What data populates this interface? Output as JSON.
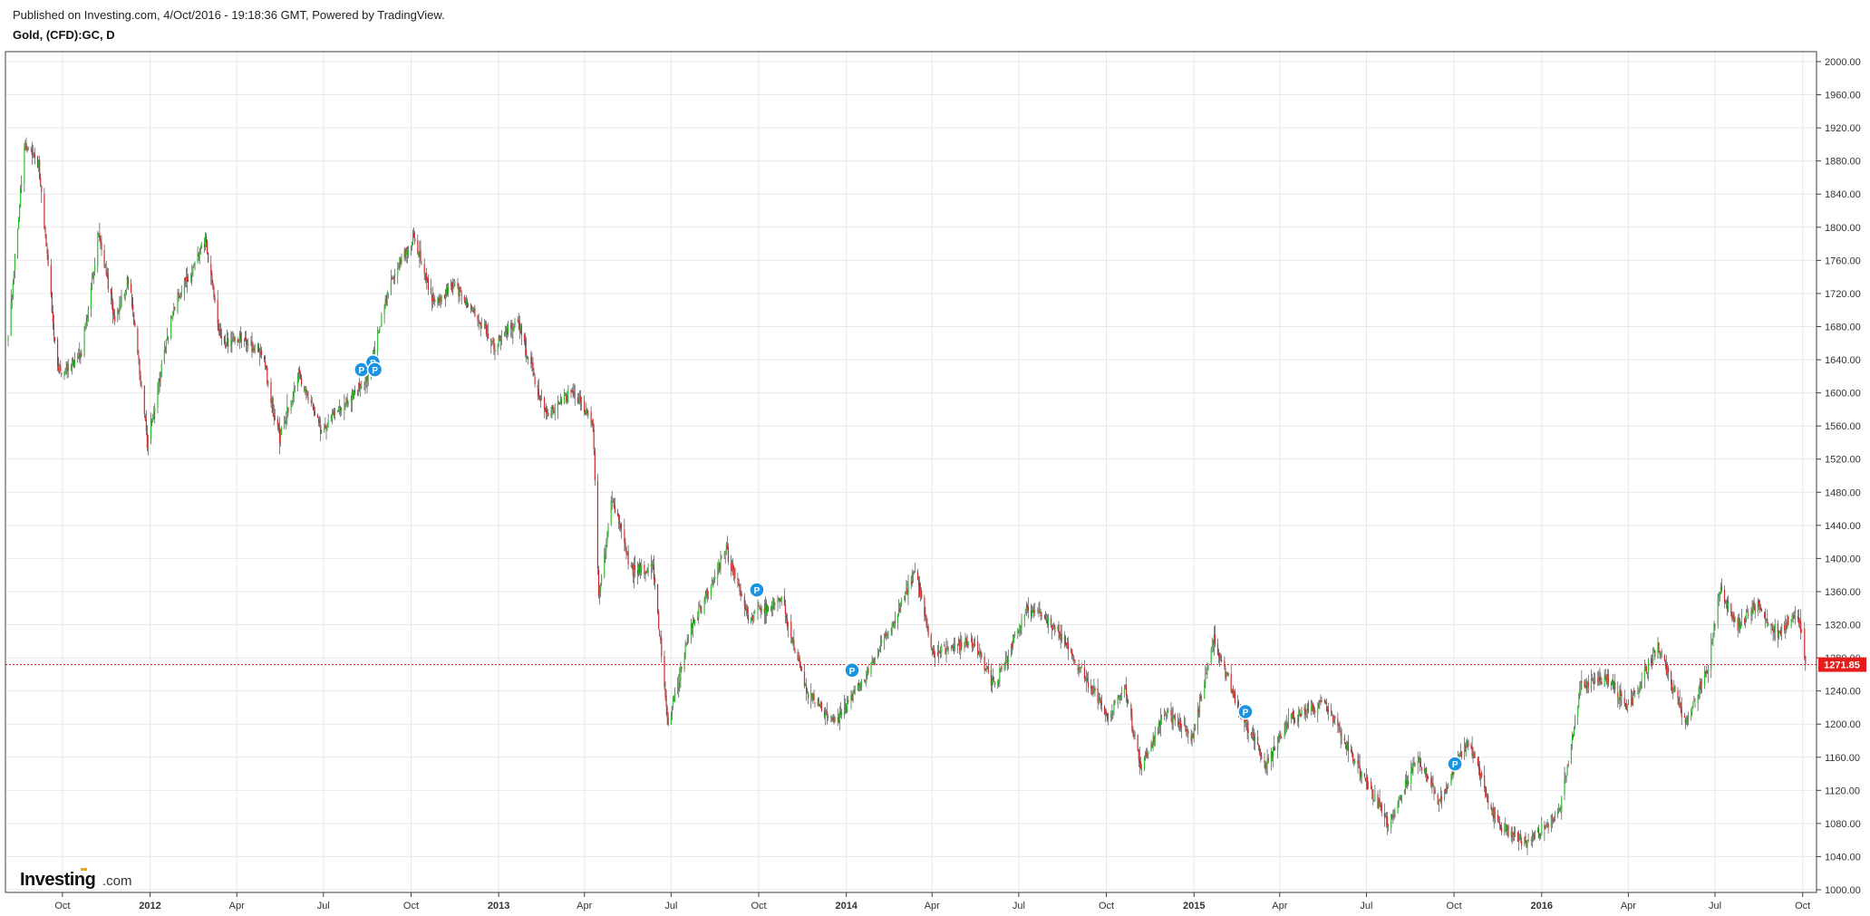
{
  "header": {
    "published": "Published on Investing.com, 4/Oct/2016 - 19:18:36 GMT, Powered by TradingView.",
    "symbol": "Gold, (CFD):GC, D"
  },
  "logo": {
    "brand": "Investing",
    "suffix": ".com"
  },
  "colors": {
    "up": "#2cbf2c",
    "down": "#d2272c",
    "grid": "#e9e9e9",
    "last_price": "#e41c1c",
    "marker": "#1a93e0"
  },
  "chart_data": {
    "type": "candlestick",
    "title": "Gold, (CFD):GC, D",
    "x_ticks": [
      {
        "label": "Oct",
        "date": "2011-10-01"
      },
      {
        "label": "2012",
        "date": "2012-01-01",
        "bold": true
      },
      {
        "label": "Apr",
        "date": "2012-04-01"
      },
      {
        "label": "Jul",
        "date": "2012-07-01"
      },
      {
        "label": "Oct",
        "date": "2012-10-01"
      },
      {
        "label": "2013",
        "date": "2013-01-01",
        "bold": true
      },
      {
        "label": "Apr",
        "date": "2013-04-01"
      },
      {
        "label": "Jul",
        "date": "2013-07-01"
      },
      {
        "label": "Oct",
        "date": "2013-10-01"
      },
      {
        "label": "2014",
        "date": "2014-01-01",
        "bold": true
      },
      {
        "label": "Apr",
        "date": "2014-04-01"
      },
      {
        "label": "Jul",
        "date": "2014-07-01"
      },
      {
        "label": "Oct",
        "date": "2014-10-01"
      },
      {
        "label": "2015",
        "date": "2015-01-01",
        "bold": true
      },
      {
        "label": "Apr",
        "date": "2015-04-01"
      },
      {
        "label": "Jul",
        "date": "2015-07-01"
      },
      {
        "label": "Oct",
        "date": "2015-10-01"
      },
      {
        "label": "2016",
        "date": "2016-01-01",
        "bold": true
      },
      {
        "label": "Apr",
        "date": "2016-04-01"
      },
      {
        "label": "Jul",
        "date": "2016-07-01"
      },
      {
        "label": "Oct",
        "date": "2016-10-01"
      }
    ],
    "y_ticks": [
      "1000.00",
      "1040.00",
      "1080.00",
      "1120.00",
      "1160.00",
      "1200.00",
      "1240.00",
      "1280.00",
      "1320.00",
      "1360.00",
      "1400.00",
      "1440.00",
      "1480.00",
      "1520.00",
      "1560.00",
      "1600.00",
      "1640.00",
      "1680.00",
      "1720.00",
      "1760.00",
      "1800.00",
      "1840.00",
      "1880.00",
      "1920.00",
      "1960.00",
      "2000.00"
    ],
    "ylim": [
      1000,
      2000
    ],
    "x_range": [
      "2011-08-05",
      "2016-10-07"
    ],
    "grid": true,
    "last_price": {
      "value": 1271.85,
      "label": "1271.85"
    },
    "markers": [
      {
        "date": "2012-08-10",
        "price": 1628,
        "label": "P"
      },
      {
        "date": "2012-08-22",
        "price": 1637,
        "label": "P"
      },
      {
        "date": "2012-08-24",
        "price": 1628,
        "label": "P"
      },
      {
        "date": "2013-09-29",
        "price": 1362,
        "label": "P"
      },
      {
        "date": "2014-01-07",
        "price": 1265,
        "label": "P"
      },
      {
        "date": "2015-02-24",
        "price": 1215,
        "label": "P"
      },
      {
        "date": "2015-10-02",
        "price": 1152,
        "label": "P"
      }
    ],
    "price_path": [
      [
        "2011-08-05",
        1665
      ],
      [
        "2011-08-22",
        1900
      ],
      [
        "2011-09-06",
        1875
      ],
      [
        "2011-09-26",
        1625
      ],
      [
        "2011-10-20",
        1640
      ],
      [
        "2011-11-08",
        1790
      ],
      [
        "2011-11-25",
        1690
      ],
      [
        "2011-12-10",
        1740
      ],
      [
        "2011-12-29",
        1540
      ],
      [
        "2012-01-25",
        1700
      ],
      [
        "2012-02-28",
        1785
      ],
      [
        "2012-03-15",
        1660
      ],
      [
        "2012-04-02",
        1665
      ],
      [
        "2012-04-27",
        1650
      ],
      [
        "2012-05-16",
        1545
      ],
      [
        "2012-06-05",
        1625
      ],
      [
        "2012-06-28",
        1555
      ],
      [
        "2012-07-20",
        1585
      ],
      [
        "2012-08-15",
        1615
      ],
      [
        "2012-09-10",
        1735
      ],
      [
        "2012-10-04",
        1790
      ],
      [
        "2012-10-25",
        1705
      ],
      [
        "2012-11-15",
        1730
      ],
      [
        "2012-12-05",
        1700
      ],
      [
        "2012-12-28",
        1655
      ],
      [
        "2013-01-20",
        1690
      ],
      [
        "2013-02-20",
        1570
      ],
      [
        "2013-03-20",
        1605
      ],
      [
        "2013-04-10",
        1560
      ],
      [
        "2013-04-16",
        1350
      ],
      [
        "2013-04-30",
        1475
      ],
      [
        "2013-05-20",
        1385
      ],
      [
        "2013-06-12",
        1390
      ],
      [
        "2013-06-28",
        1200
      ],
      [
        "2013-07-20",
        1310
      ],
      [
        "2013-08-28",
        1410
      ],
      [
        "2013-09-20",
        1330
      ],
      [
        "2013-10-25",
        1350
      ],
      [
        "2013-11-20",
        1240
      ],
      [
        "2013-12-20",
        1200
      ],
      [
        "2014-01-15",
        1245
      ],
      [
        "2014-02-20",
        1325
      ],
      [
        "2014-03-15",
        1385
      ],
      [
        "2014-04-01",
        1285
      ],
      [
        "2014-05-15",
        1300
      ],
      [
        "2014-06-05",
        1245
      ],
      [
        "2014-07-10",
        1340
      ],
      [
        "2014-08-10",
        1315
      ],
      [
        "2014-09-05",
        1265
      ],
      [
        "2014-10-01",
        1210
      ],
      [
        "2014-10-20",
        1245
      ],
      [
        "2014-11-06",
        1145
      ],
      [
        "2014-12-01",
        1215
      ],
      [
        "2014-12-30",
        1185
      ],
      [
        "2015-01-22",
        1300
      ],
      [
        "2015-02-15",
        1225
      ],
      [
        "2015-03-17",
        1150
      ],
      [
        "2015-04-10",
        1205
      ],
      [
        "2015-05-18",
        1225
      ],
      [
        "2015-06-10",
        1175
      ],
      [
        "2015-07-24",
        1080
      ],
      [
        "2015-08-24",
        1160
      ],
      [
        "2015-09-15",
        1105
      ],
      [
        "2015-10-15",
        1180
      ],
      [
        "2015-11-15",
        1080
      ],
      [
        "2015-12-17",
        1055
      ],
      [
        "2016-01-20",
        1095
      ],
      [
        "2016-02-11",
        1245
      ],
      [
        "2016-03-10",
        1255
      ],
      [
        "2016-04-01",
        1220
      ],
      [
        "2016-05-02",
        1295
      ],
      [
        "2016-05-30",
        1205
      ],
      [
        "2016-06-23",
        1265
      ],
      [
        "2016-07-06",
        1360
      ],
      [
        "2016-07-25",
        1320
      ],
      [
        "2016-08-15",
        1345
      ],
      [
        "2016-09-05",
        1310
      ],
      [
        "2016-09-20",
        1330
      ],
      [
        "2016-09-30",
        1315
      ],
      [
        "2016-10-04",
        1272
      ]
    ]
  }
}
